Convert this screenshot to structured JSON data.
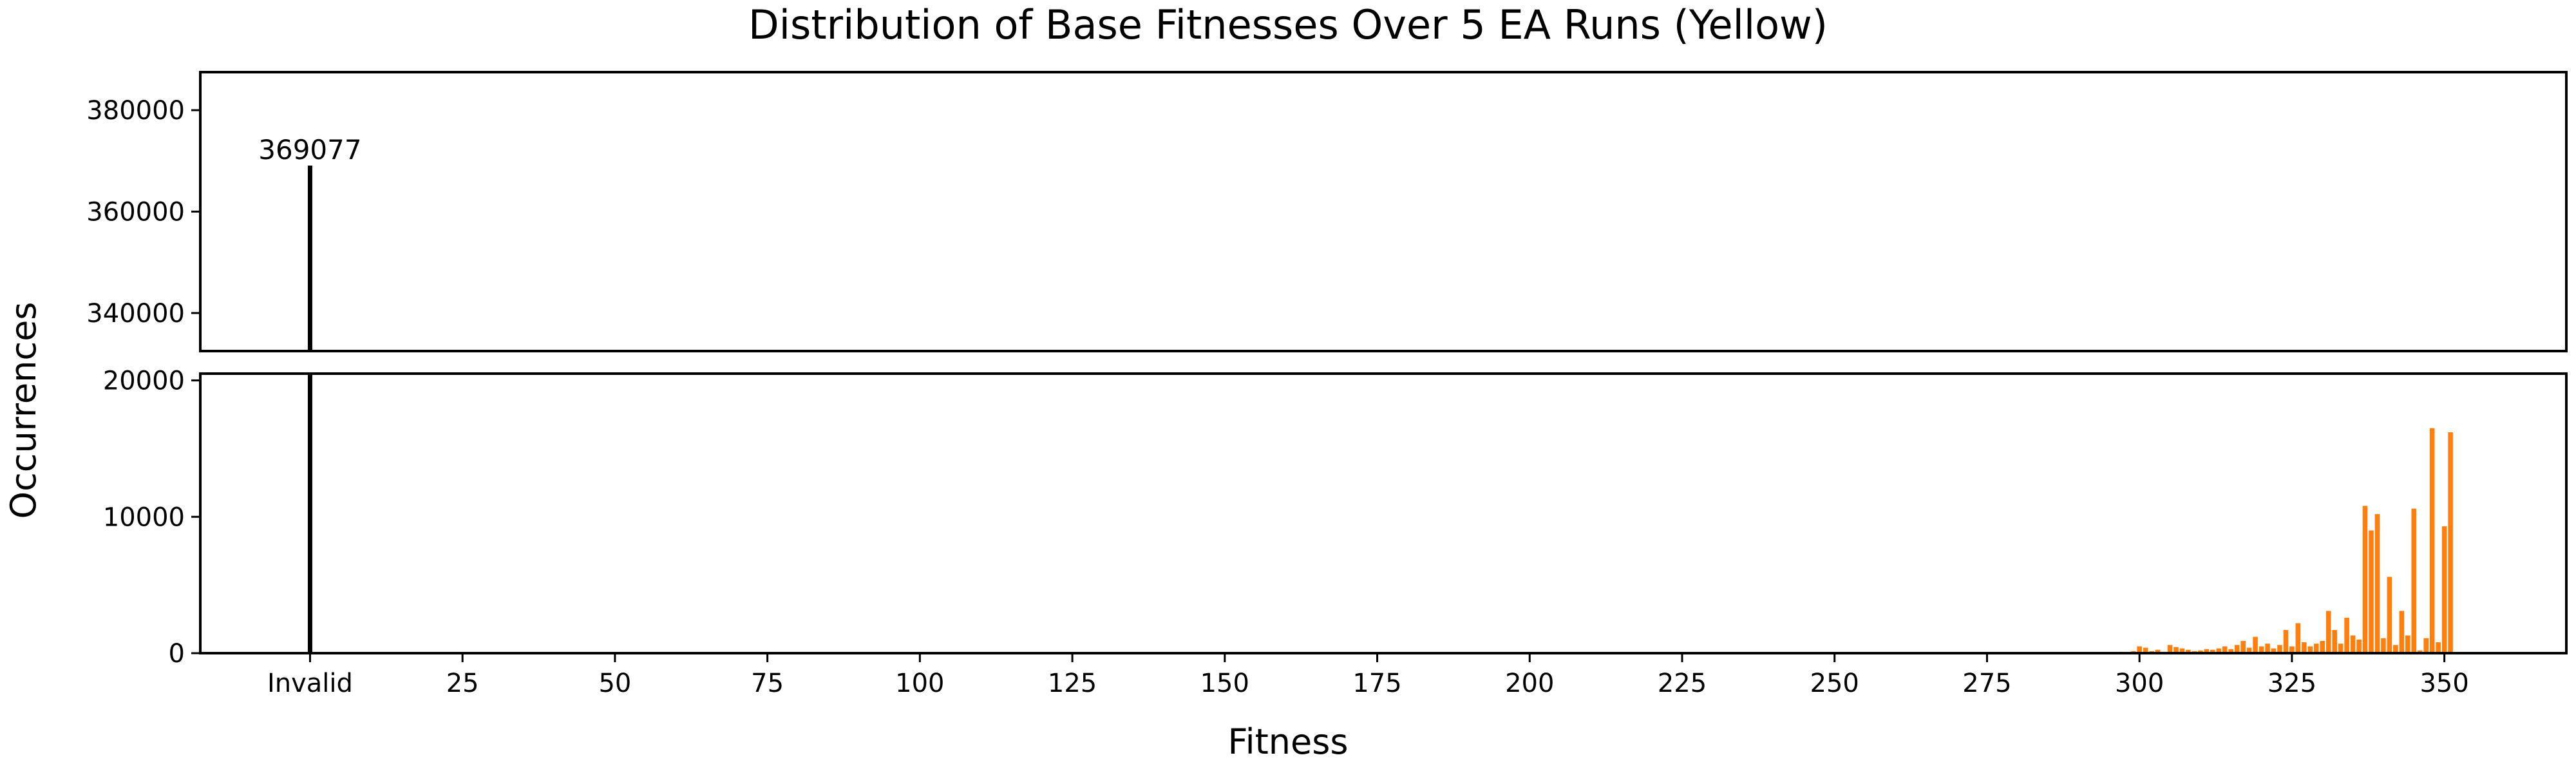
{
  "chart_data": {
    "type": "bar",
    "title": "Distribution of Base Fitnesses Over 5 EA Runs (Yellow)",
    "xlabel": "Fitness",
    "ylabel": "Occurrences",
    "xlim": [
      -18,
      370
    ],
    "x_ticks": [
      {
        "value": 0,
        "label": "Invalid"
      },
      {
        "value": 25,
        "label": "25"
      },
      {
        "value": 50,
        "label": "50"
      },
      {
        "value": 75,
        "label": "75"
      },
      {
        "value": 100,
        "label": "100"
      },
      {
        "value": 125,
        "label": "125"
      },
      {
        "value": 150,
        "label": "150"
      },
      {
        "value": 175,
        "label": "175"
      },
      {
        "value": 200,
        "label": "200"
      },
      {
        "value": 225,
        "label": "225"
      },
      {
        "value": 250,
        "label": "250"
      },
      {
        "value": 275,
        "label": "275"
      },
      {
        "value": 300,
        "label": "300"
      },
      {
        "value": 325,
        "label": "325"
      },
      {
        "value": 350,
        "label": "350"
      }
    ],
    "broken_y_axis": true,
    "upper_ylim": [
      332500,
      387500
    ],
    "upper_y_ticks": [
      340000,
      360000,
      380000
    ],
    "lower_ylim": [
      0,
      20500
    ],
    "lower_y_ticks": [
      0,
      10000,
      20000
    ],
    "grid": false,
    "invalid_bar": {
      "x_label": "Invalid",
      "value": 369077,
      "label": "369077",
      "color": "#000000"
    },
    "series": [
      {
        "color": "#ff7f0e",
        "x": [
          295,
          296,
          297,
          298,
          299,
          300,
          301,
          302,
          303,
          304,
          305,
          306,
          307,
          308,
          309,
          310,
          311,
          312,
          313,
          314,
          315,
          316,
          317,
          318,
          319,
          320,
          321,
          322,
          323,
          324,
          325,
          326,
          327,
          328,
          329,
          330,
          331,
          332,
          333,
          334,
          335,
          336,
          337,
          338,
          339,
          340,
          341,
          342,
          343,
          344,
          345,
          346,
          347,
          348,
          349,
          350,
          351
        ],
        "values": [
          80,
          40,
          100,
          60,
          150,
          500,
          400,
          150,
          250,
          100,
          600,
          450,
          350,
          250,
          150,
          200,
          300,
          250,
          350,
          500,
          300,
          600,
          900,
          400,
          1200,
          500,
          700,
          350,
          600,
          1700,
          500,
          2200,
          800,
          500,
          700,
          900,
          3100,
          1700,
          700,
          2600,
          1300,
          1000,
          10800,
          9000,
          10200,
          1100,
          5600,
          600,
          3100,
          1300,
          10600,
          200,
          1100,
          16500,
          800,
          9300,
          16200
        ]
      }
    ]
  }
}
